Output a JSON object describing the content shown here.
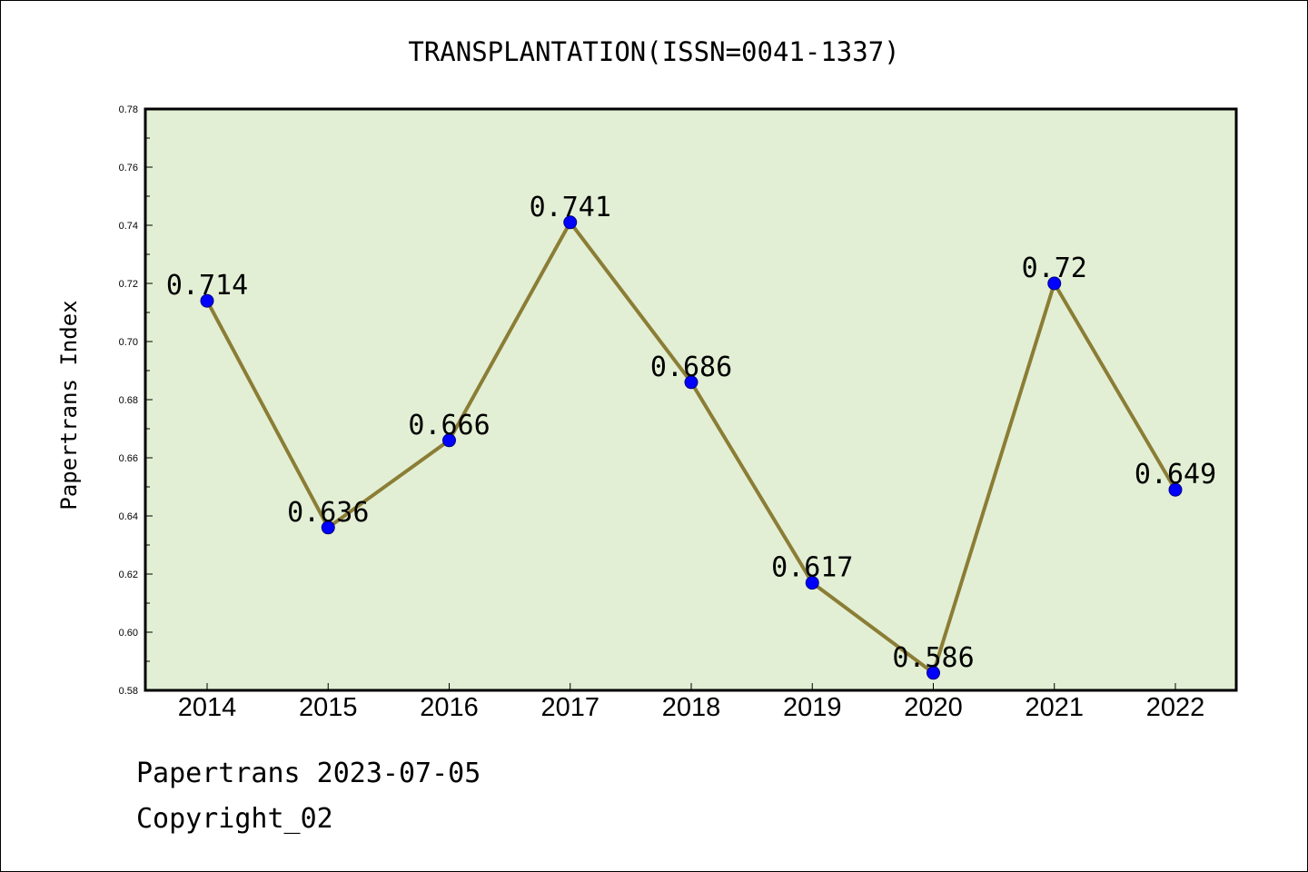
{
  "footer": {
    "date_line": "Papertrans 2023-07-05",
    "copyright": "Copyright_02"
  },
  "colors": {
    "plot_background": "#e2efd4",
    "line": "#8b7d35",
    "marker": "#0000ff",
    "marker_edge": "#000080"
  },
  "chart_data": {
    "type": "line",
    "title": "TRANSPLANTATION(ISSN=0041-1337)",
    "xlabel": "",
    "ylabel": "Papertrans Index",
    "categories": [
      "2014",
      "2015",
      "2016",
      "2017",
      "2018",
      "2019",
      "2020",
      "2021",
      "2022"
    ],
    "series": [
      {
        "values": [
          0.714,
          0.636,
          0.666,
          0.741,
          0.686,
          0.617,
          0.586,
          0.72,
          0.649
        ],
        "data_labels": [
          "0.714",
          "0.636",
          "0.666",
          "0.741",
          "0.686",
          "0.617",
          "0.586",
          "0.72",
          "0.649"
        ]
      }
    ],
    "ylim": [
      0.58,
      0.78
    ],
    "yticks": [
      "0.58",
      "0.60",
      "0.62",
      "0.64",
      "0.66",
      "0.68",
      "0.70",
      "0.72",
      "0.74",
      "0.76",
      "0.78"
    ],
    "grid": false,
    "legend": "none"
  }
}
